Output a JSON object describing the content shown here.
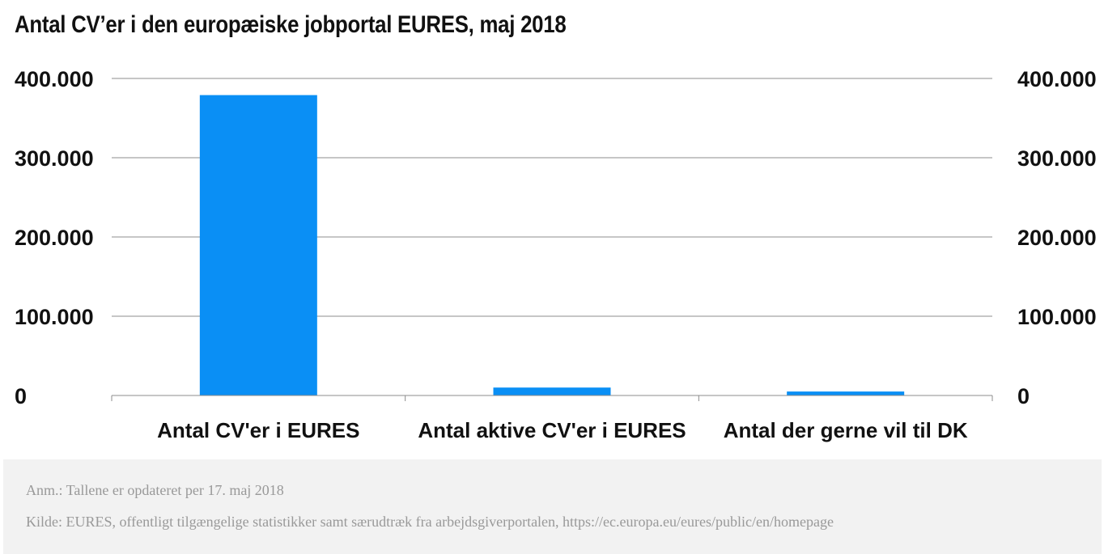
{
  "chart_data": {
    "type": "bar",
    "title": "Antal CV’er i den europæiske jobportal EURES, maj 2018",
    "categories": [
      "Antal CV'er i EURES",
      "Antal aktive CV'er i EURES",
      "Antal der gerne vil til DK"
    ],
    "values": [
      379000,
      10000,
      5000
    ],
    "xlabel": "",
    "ylabel": "",
    "ylim": [
      0,
      400000
    ],
    "yticks": [
      0,
      100000,
      200000,
      300000,
      400000
    ],
    "ytick_labels": [
      "0",
      "100.000",
      "200.000",
      "300.000",
      "400.000"
    ],
    "secondary_axis": true,
    "grid": true,
    "legend": "none",
    "bar_color": "#0a8ff5"
  },
  "notes": {
    "note": "Anm.: Tallene er opdateret per 17. maj 2018",
    "source": "Kilde: EURES, offentligt tilgængelige statistikker samt særudtræk fra arbejdsgiverportalen, https://ec.europa.eu/eures/public/en/homepage"
  }
}
